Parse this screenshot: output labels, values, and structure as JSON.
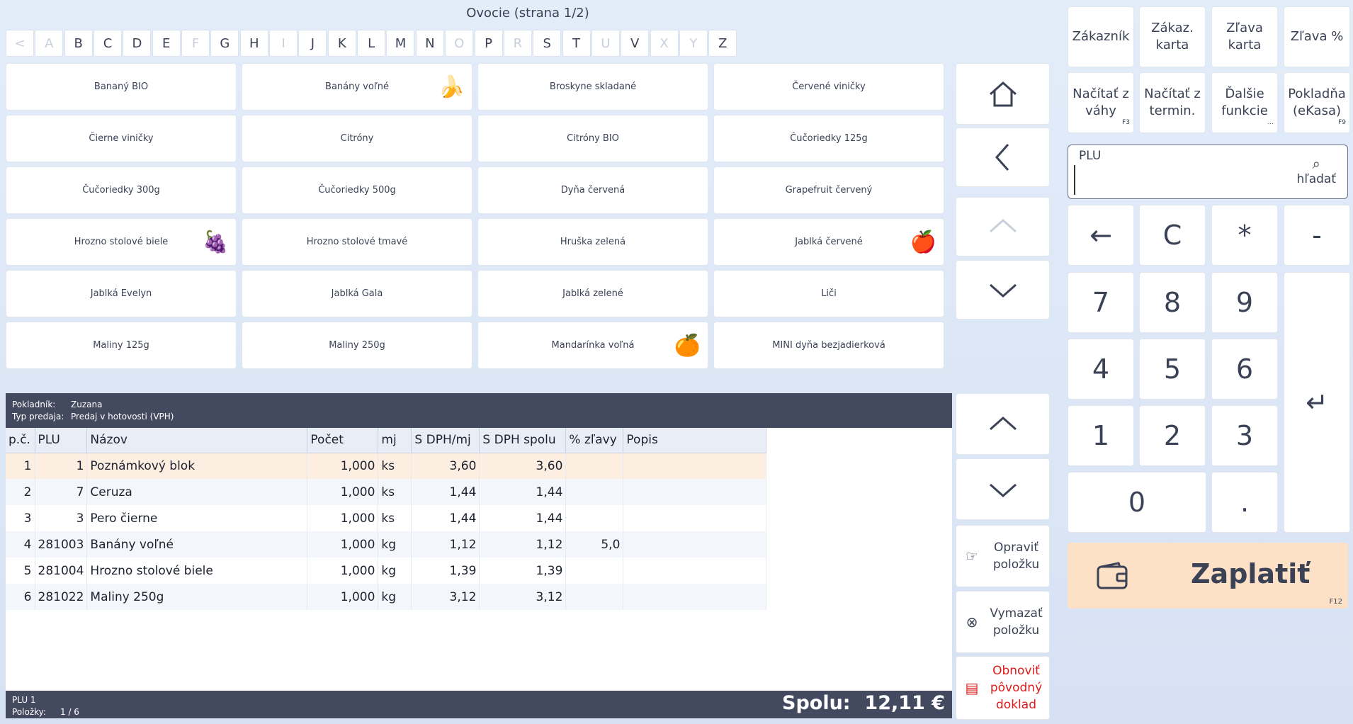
{
  "page_title": "Ovocie (strana 1/2)",
  "alphabet": [
    {
      "label": "<",
      "enabled": false
    },
    {
      "label": "A",
      "enabled": false
    },
    {
      "label": "B",
      "enabled": true
    },
    {
      "label": "C",
      "enabled": true
    },
    {
      "label": "D",
      "enabled": true
    },
    {
      "label": "E",
      "enabled": true
    },
    {
      "label": "F",
      "enabled": false
    },
    {
      "label": "G",
      "enabled": true
    },
    {
      "label": "H",
      "enabled": true
    },
    {
      "label": "I",
      "enabled": false
    },
    {
      "label": "J",
      "enabled": true
    },
    {
      "label": "K",
      "enabled": true
    },
    {
      "label": "L",
      "enabled": true
    },
    {
      "label": "M",
      "enabled": true
    },
    {
      "label": "N",
      "enabled": true
    },
    {
      "label": "O",
      "enabled": false
    },
    {
      "label": "P",
      "enabled": true
    },
    {
      "label": "R",
      "enabled": false
    },
    {
      "label": "S",
      "enabled": true
    },
    {
      "label": "T",
      "enabled": true
    },
    {
      "label": "U",
      "enabled": false
    },
    {
      "label": "V",
      "enabled": true
    },
    {
      "label": "X",
      "enabled": false
    },
    {
      "label": "Y",
      "enabled": false
    },
    {
      "label": "Z",
      "enabled": true
    }
  ],
  "products": [
    {
      "label": "Bananý BIO",
      "icon": ""
    },
    {
      "label": "Banány voľné",
      "icon": "🍌"
    },
    {
      "label": "Broskyne skladané",
      "icon": ""
    },
    {
      "label": "Červené viničky",
      "icon": ""
    },
    {
      "label": "Čierne viničky",
      "icon": ""
    },
    {
      "label": "Citróny",
      "icon": ""
    },
    {
      "label": "Citróny BIO",
      "icon": ""
    },
    {
      "label": "Čučoriedky 125g",
      "icon": ""
    },
    {
      "label": "Čučoriedky 300g",
      "icon": ""
    },
    {
      "label": "Čučoriedky 500g",
      "icon": ""
    },
    {
      "label": "Dyňa červená",
      "icon": ""
    },
    {
      "label": "Grapefruit červený",
      "icon": ""
    },
    {
      "label": "Hrozno stolové biele",
      "icon": "🍇"
    },
    {
      "label": "Hrozno stolové tmavé",
      "icon": ""
    },
    {
      "label": "Hruška zelená",
      "icon": ""
    },
    {
      "label": "Jablká červené",
      "icon": "🍎"
    },
    {
      "label": "Jablká Evelyn",
      "icon": ""
    },
    {
      "label": "Jablká Gala",
      "icon": ""
    },
    {
      "label": "Jablká zelené",
      "icon": ""
    },
    {
      "label": "Liči",
      "icon": ""
    },
    {
      "label": "Maliny 125g",
      "icon": ""
    },
    {
      "label": "Maliny 250g",
      "icon": ""
    },
    {
      "label": "Mandarínka voľná",
      "icon": "🍊"
    },
    {
      "label": "MINI dyňa bezjadierková",
      "icon": ""
    }
  ],
  "receipt": {
    "cashier_label": "Pokladník:",
    "cashier": "Zuzana",
    "sale_type_label": "Typ predaja:",
    "sale_type": "Predaj v hotovosti (VPH)",
    "columns": [
      "p.č.",
      "PLU",
      "Názov",
      "Počet",
      "mj",
      "S DPH/mj",
      "S DPH spolu",
      "% zľavy",
      "Popis"
    ],
    "rows": [
      {
        "no": "1",
        "plu": "1",
        "name": "Poznámkový blok",
        "qty": "1,000",
        "unit": "ks",
        "unit_price": "3,60",
        "total": "3,60",
        "discount": "",
        "desc": ""
      },
      {
        "no": "2",
        "plu": "7",
        "name": "Ceruza",
        "qty": "1,000",
        "unit": "ks",
        "unit_price": "1,44",
        "total": "1,44",
        "discount": "",
        "desc": ""
      },
      {
        "no": "3",
        "plu": "3",
        "name": "Pero čierne",
        "qty": "1,000",
        "unit": "ks",
        "unit_price": "1,44",
        "total": "1,44",
        "discount": "",
        "desc": ""
      },
      {
        "no": "4",
        "plu": "281003",
        "name": "Banány voľné",
        "qty": "1,000",
        "unit": "kg",
        "unit_price": "1,12",
        "total": "1,12",
        "discount": "5,0",
        "desc": ""
      },
      {
        "no": "5",
        "plu": "281004",
        "name": "Hrozno stolové biele",
        "qty": "1,000",
        "unit": "kg",
        "unit_price": "1,39",
        "total": "1,39",
        "discount": "",
        "desc": ""
      },
      {
        "no": "6",
        "plu": "281022",
        "name": "Maliny 250g",
        "qty": "1,000",
        "unit": "kg",
        "unit_price": "3,12",
        "total": "3,12",
        "discount": "",
        "desc": ""
      }
    ],
    "footer_plu": "PLU 1",
    "items_label": "Položky:",
    "items_count": "1 / 6",
    "total_label": "Spolu:",
    "total_value": "12,11 €"
  },
  "side_buttons": {
    "edit": "Opraviť položku",
    "delete": "Vymazať položku",
    "restore": "Obnoviť pôvodný doklad"
  },
  "functions": [
    {
      "label": "Zákazník",
      "hint": ""
    },
    {
      "label": "Zákaz. karta",
      "hint": ""
    },
    {
      "label": "Zľava karta",
      "hint": ""
    },
    {
      "label": "Zľava %",
      "hint": ""
    },
    {
      "label": "Načítať z váhy",
      "hint": "F3"
    },
    {
      "label": "Načítať z termin.",
      "hint": ""
    },
    {
      "label": "Ďalšie funkcie",
      "hint": "..."
    },
    {
      "label": "Pokladňa (eKasa)",
      "hint": "F9"
    }
  ],
  "plu": {
    "label": "PLU",
    "value": "",
    "search_label": "hľadať"
  },
  "keypad": {
    "backspace": "←",
    "clear": "C",
    "multiply": "*",
    "minus": "-",
    "k7": "7",
    "k8": "8",
    "k9": "9",
    "k4": "4",
    "k5": "5",
    "k6": "6",
    "k1": "1",
    "k2": "2",
    "k3": "3",
    "k0": "0",
    "dot": ".",
    "enter": "↵"
  },
  "pay": {
    "label": "Zaplatiť",
    "hint": "F12"
  },
  "colors": {
    "accent_pay": "#fde1c6",
    "header_bg": "#434a60",
    "selected_row": "#fcefe2"
  }
}
